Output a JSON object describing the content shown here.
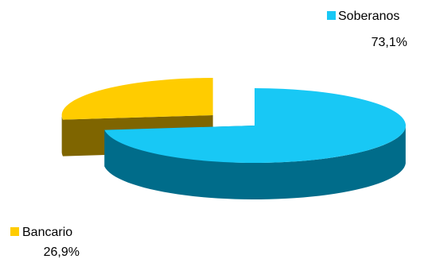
{
  "chart_data": {
    "type": "pie",
    "title": "",
    "categories": [
      "Soberanos",
      "Bancario"
    ],
    "values": [
      73.1,
      26.9
    ],
    "labels": [
      "73,1%",
      "26,9%"
    ],
    "colors": [
      "#18c8f5",
      "#ffcc00"
    ],
    "side_colors": [
      "#006c8a",
      "#7f6500"
    ],
    "exploded": "Bancario",
    "view": "3d",
    "legend": "inline labels"
  }
}
